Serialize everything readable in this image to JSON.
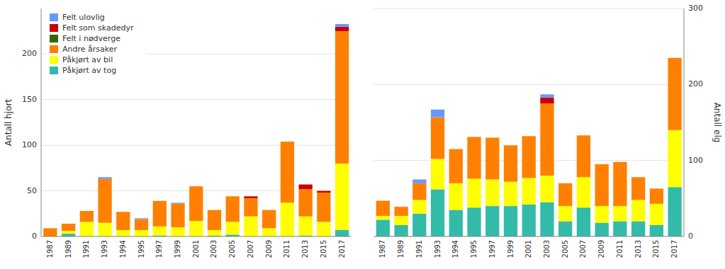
{
  "chart_data": [
    {
      "type": "bar",
      "stacked": true,
      "ylabel": "Antall hjort",
      "categories": [
        "1987",
        "1989",
        "1991",
        "1993",
        "1994",
        "1995",
        "1997",
        "1999",
        "2001",
        "2003",
        "2005",
        "2007",
        "2009",
        "2011",
        "2013",
        "2015",
        "2017"
      ],
      "series": [
        {
          "name": "Påkjørt av tog",
          "color": "#33bbaa",
          "values": [
            0,
            3,
            0,
            0,
            0,
            0,
            1,
            0,
            0,
            1,
            2,
            0,
            0,
            0,
            1,
            0,
            7
          ]
        },
        {
          "name": "Påkjørt av bil",
          "color": "#ffff00",
          "values": [
            0,
            3,
            16,
            15,
            7,
            7,
            10,
            10,
            17,
            6,
            14,
            22,
            9,
            37,
            21,
            16,
            73
          ]
        },
        {
          "name": "Andre årsaker",
          "color": "#ff8000",
          "values": [
            9,
            8,
            12,
            48,
            20,
            12,
            28,
            26,
            38,
            22,
            28,
            20,
            20,
            67,
            30,
            32,
            145
          ]
        },
        {
          "name": "Felt i nødverge",
          "color": "#336600",
          "values": [
            0,
            0,
            0,
            0,
            0,
            0,
            0,
            0,
            0,
            0,
            0,
            0,
            0,
            0,
            0,
            0,
            0
          ]
        },
        {
          "name": "Felt som skadedyr",
          "color": "#cc0000",
          "values": [
            0,
            0,
            0,
            0,
            0,
            0,
            0,
            0,
            0,
            0,
            0,
            2,
            0,
            0,
            5,
            2,
            5
          ]
        },
        {
          "name": "Felt ulovlig",
          "color": "#6699ff",
          "values": [
            0,
            0,
            0,
            2,
            0,
            1,
            0,
            1,
            0,
            0,
            0,
            0,
            0,
            0,
            0,
            0,
            3
          ]
        }
      ],
      "ylim": [
        0,
        250
      ],
      "yticks": [
        0,
        50,
        100,
        150,
        200
      ],
      "grid": true,
      "legend": "upper left"
    },
    {
      "type": "bar",
      "stacked": true,
      "ylabel": "Antall elg",
      "categories": [
        "1987",
        "1989",
        "1991",
        "1993",
        "1994",
        "1995",
        "1997",
        "1999",
        "2001",
        "2003",
        "2005",
        "2007",
        "2009",
        "2011",
        "2013",
        "2015",
        "2017"
      ],
      "series": [
        {
          "color": "#33bbaa",
          "values": [
            22,
            15,
            30,
            62,
            35,
            38,
            40,
            40,
            42,
            45,
            20,
            38,
            18,
            20,
            20,
            15,
            65
          ]
        },
        {
          "color": "#ffff00",
          "values": [
            5,
            12,
            18,
            40,
            35,
            38,
            35,
            32,
            35,
            35,
            20,
            40,
            22,
            20,
            28,
            28,
            75
          ]
        },
        {
          "color": "#ff8000",
          "values": [
            20,
            12,
            22,
            55,
            45,
            55,
            55,
            48,
            55,
            95,
            30,
            55,
            55,
            58,
            30,
            20,
            95
          ]
        },
        {
          "color": "#336600",
          "values": [
            0,
            0,
            0,
            0,
            0,
            0,
            0,
            0,
            0,
            0,
            0,
            0,
            0,
            0,
            0,
            0,
            0
          ]
        },
        {
          "color": "#cc0000",
          "values": [
            0,
            0,
            0,
            0,
            0,
            0,
            0,
            0,
            0,
            8,
            0,
            0,
            0,
            0,
            0,
            0,
            0
          ]
        },
        {
          "color": "#6699ff",
          "values": [
            0,
            0,
            5,
            10,
            0,
            0,
            0,
            0,
            0,
            4,
            0,
            0,
            0,
            0,
            0,
            0,
            0
          ]
        }
      ],
      "ylim": [
        0,
        300
      ],
      "yticks": [
        0,
        100,
        200,
        300
      ],
      "grid": true
    }
  ]
}
